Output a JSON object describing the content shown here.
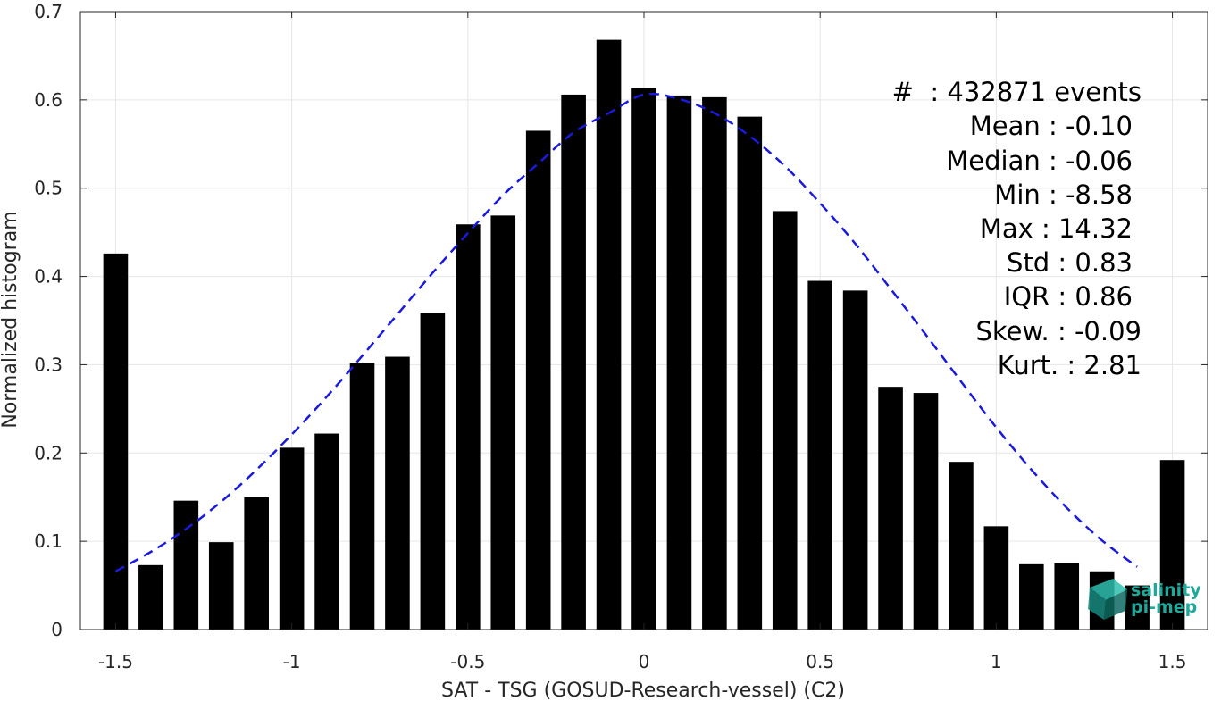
{
  "chart_data": {
    "type": "bar",
    "xlabel": "SAT - TSG (GOSUD-Research-vessel) (C2)",
    "ylabel": "Normalized histogram",
    "xlim": [
      -1.6,
      1.6
    ],
    "ylim": [
      0,
      0.7
    ],
    "xticks": [
      -1.5,
      -1,
      -0.5,
      0,
      0.5,
      1,
      1.5
    ],
    "xtick_labels": [
      "-1.5",
      "-1",
      "-0.5",
      "0",
      "0.5",
      "1",
      "1.5"
    ],
    "yticks": [
      0,
      0.1,
      0.2,
      0.3,
      0.4,
      0.5,
      0.6,
      0.7
    ],
    "ytick_labels": [
      "0",
      "0.1",
      "0.2",
      "0.3",
      "0.4",
      "0.5",
      "0.6",
      "0.7"
    ],
    "grid": true,
    "bar_width": 0.07,
    "bar_color": "#000000",
    "fit_color": "#1a1adb",
    "x": [
      -1.5,
      -1.4,
      -1.3,
      -1.2,
      -1.1,
      -1.0,
      -0.9,
      -0.8,
      -0.7,
      -0.6,
      -0.5,
      -0.4,
      -0.3,
      -0.2,
      -0.1,
      0.0,
      0.1,
      0.2,
      0.3,
      0.4,
      0.5,
      0.6,
      0.7,
      0.8,
      0.9,
      1.0,
      1.1,
      1.2,
      1.3,
      1.4,
      1.5
    ],
    "values": [
      0.426,
      0.073,
      0.146,
      0.099,
      0.15,
      0.206,
      0.222,
      0.302,
      0.309,
      0.359,
      0.459,
      0.469,
      0.565,
      0.606,
      0.668,
      0.613,
      0.605,
      0.603,
      0.581,
      0.474,
      0.395,
      0.384,
      0.275,
      0.268,
      0.19,
      0.117,
      0.074,
      0.075,
      0.066,
      0.05,
      0.192
    ],
    "fit": {
      "style": "dashed",
      "x": [
        -1.5,
        -1.4,
        -1.3,
        -1.2,
        -1.1,
        -1.0,
        -0.9,
        -0.8,
        -0.7,
        -0.6,
        -0.5,
        -0.4,
        -0.3,
        -0.2,
        -0.1,
        0.0,
        0.1,
        0.2,
        0.3,
        0.4,
        0.5,
        0.6,
        0.7,
        0.8,
        0.9,
        1.0,
        1.1,
        1.2,
        1.3,
        1.4
      ],
      "y": [
        0.066,
        0.088,
        0.114,
        0.145,
        0.181,
        0.221,
        0.264,
        0.31,
        0.357,
        0.404,
        0.449,
        0.492,
        0.528,
        0.563,
        0.585,
        0.606,
        0.601,
        0.585,
        0.559,
        0.525,
        0.483,
        0.437,
        0.386,
        0.334,
        0.281,
        0.229,
        0.181,
        0.138,
        0.101,
        0.071
      ]
    },
    "annotations": [
      "#  : 432871 events",
      "Mean : -0.10",
      "Median : -0.06",
      "Min : -8.58",
      "Max : 14.32",
      "Std : 0.83",
      "IQR : 0.86",
      "Skew. : -0.09",
      "Kurt. : 2.81"
    ]
  },
  "logo": {
    "line1": "salinity",
    "line2": "pi-mep",
    "color": "#1fa99a"
  }
}
